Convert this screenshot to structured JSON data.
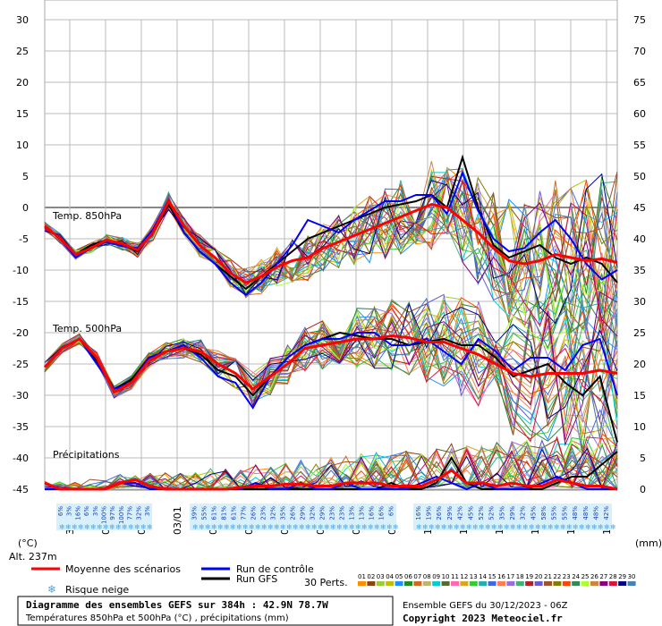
{
  "chart_data": {
    "type": "line",
    "left_axis": {
      "label": "(°C)",
      "ticks": [
        30,
        25,
        20,
        15,
        10,
        5,
        0,
        -5,
        -10,
        -15,
        -20,
        -25,
        -30,
        -35,
        -40,
        -45
      ],
      "range": [
        -45,
        30
      ]
    },
    "right_axis": {
      "label": "(mm)",
      "ticks": [
        75,
        70,
        65,
        60,
        55,
        50,
        45,
        40,
        35,
        30,
        25,
        20,
        15,
        10,
        5,
        0
      ],
      "range": [
        0,
        75
      ]
    },
    "x_dates": [
      "31/12",
      "01/01",
      "02/01",
      "03/01",
      "04/01",
      "05/01",
      "06/01",
      "07/01",
      "08/01",
      "09/01",
      "10/01",
      "11/01",
      "12/01",
      "13/01",
      "14/01",
      "15/01"
    ],
    "panel_labels": {
      "t850": "Temp. 850hPa",
      "t500": "Temp. 500hPa",
      "precip": "Précipitations"
    },
    "alt_label": "Alt. 237m",
    "snow_risk_percent": [
      [
        "6%",
        "3%",
        "16%",
        "6%",
        "3%",
        "100%",
        "97%",
        "100%",
        "77%",
        "32%",
        "3%"
      ],
      [
        "39%",
        "55%",
        "61%",
        "81%",
        "61%",
        "77%",
        "26%",
        "23%",
        "32%",
        "35%",
        "26%",
        "29%",
        "32%",
        "29%",
        "23%",
        "23%",
        "13%",
        "13%",
        "16%",
        "16%",
        "6%"
      ],
      [
        "16%",
        "19%",
        "26%",
        "29%",
        "42%",
        "45%",
        "52%",
        "52%",
        "35%",
        "29%",
        "32%",
        "45%",
        "58%",
        "55%",
        "55%",
        "48%",
        "48%",
        "48%",
        "42%"
      ]
    ],
    "series": [
      {
        "name": "Moyenne des scénarios",
        "color": "#ff0000",
        "t850": [
          -3,
          -5,
          -7.5,
          -6.5,
          -5.2,
          -5.8,
          -6.8,
          -4,
          1,
          -3,
          -6,
          -8,
          -10.5,
          -12,
          -11,
          -9.5,
          -8.5,
          -8,
          -6.5,
          -5.5,
          -4.5,
          -3.5,
          -2.5,
          -1.5,
          -0.5,
          0.5,
          0,
          -2,
          -4,
          -6.5,
          -8.5,
          -9,
          -8.5,
          -7.5,
          -8,
          -8.5,
          -8.2,
          -8.8
        ],
        "t500": [
          -25.5,
          -22.5,
          -21,
          -24,
          -29.5,
          -28,
          -24.5,
          -23,
          -22.5,
          -23,
          -25,
          -26.5,
          -29,
          -27,
          -25,
          -22.5,
          -22,
          -21.5,
          -21,
          -21,
          -20.5,
          -20.8,
          -21.5,
          -21.5,
          -22.5,
          -23.5,
          -25,
          -26.5,
          -27,
          -26.5,
          -26.5,
          -26.5,
          -26,
          -26.5
        ],
        "precip": [
          1,
          0,
          0,
          0,
          0,
          1,
          1.5,
          0.5,
          0,
          0,
          0,
          0,
          0,
          0.3,
          0.5,
          0.5,
          0.8,
          0.8,
          0.5,
          0.5,
          1,
          1,
          1,
          0.5,
          0.5,
          0.5,
          1.5,
          3,
          1,
          1,
          0.5,
          1,
          0.5,
          0.5,
          1.5,
          1,
          0.5,
          0.5,
          0
        ]
      },
      {
        "name": "Run de contrôle",
        "color": "#0000ff",
        "t850": [
          -3,
          -5,
          -8,
          -6.5,
          -5.5,
          -6.2,
          -6.5,
          -3.5,
          1.2,
          -4,
          -7,
          -9,
          -12,
          -14,
          -12,
          -9,
          -6,
          -2,
          -3,
          -4,
          -2,
          -0.5,
          1,
          1,
          2,
          2,
          -1,
          5.5,
          -0.5,
          -5,
          -7,
          -6.5,
          -4,
          -2,
          -5,
          -9,
          -11.5,
          -10
        ],
        "t500": [
          -25.5,
          -22.5,
          -21,
          -25,
          -29,
          -28,
          -24,
          -23,
          -22,
          -24,
          -27,
          -28,
          -32,
          -27,
          -24,
          -22,
          -21,
          -21,
          -20,
          -20,
          -22,
          -22,
          -21,
          -23,
          -25,
          -21,
          -23,
          -26,
          -24,
          -24,
          -26,
          -22,
          -21,
          -30
        ],
        "precip": [
          0,
          0,
          0,
          0,
          0,
          1,
          1,
          0,
          0,
          0,
          0,
          0,
          0,
          0,
          1,
          0,
          0,
          1,
          0,
          0,
          1,
          0,
          0,
          0,
          0,
          1,
          2,
          1,
          0,
          1,
          0,
          0,
          0,
          1,
          2,
          1,
          0,
          0,
          0
        ]
      },
      {
        "name": "Run GFS",
        "color": "#000000",
        "t850": [
          -3,
          -5,
          -7.5,
          -6,
          -5.2,
          -6,
          -7,
          -4,
          0.5,
          -4,
          -7,
          -9,
          -11,
          -13,
          -11,
          -9,
          -7,
          -5,
          -4,
          -3,
          -2,
          -1,
          0,
          0.5,
          1,
          2,
          0,
          8,
          0,
          -6,
          -8,
          -7,
          -6,
          -8,
          -9,
          -8,
          -9,
          -12
        ],
        "t500": [
          -25.5,
          -22.5,
          -21,
          -24.5,
          -29,
          -27.5,
          -24,
          -23,
          -22.5,
          -23.5,
          -26,
          -27,
          -30,
          -27,
          -24,
          -22,
          -21,
          -20,
          -20.5,
          -21,
          -21,
          -22,
          -21.5,
          -21,
          -22,
          -22,
          -24,
          -27,
          -26,
          -25,
          -28,
          -30,
          -27,
          -37.5
        ],
        "precip": [
          0,
          0,
          0,
          0,
          0,
          1,
          1,
          0,
          0,
          0,
          0,
          0,
          0,
          0,
          0,
          0,
          0,
          0,
          0,
          0,
          0,
          0,
          0,
          1,
          0,
          0,
          1,
          5,
          1,
          0,
          0,
          0,
          0,
          0,
          1,
          2,
          2,
          4,
          6
        ]
      }
    ],
    "ensemble_count_label": "30 Perts.",
    "members": [
      {
        "id": "01",
        "color": "#ff8c00"
      },
      {
        "id": "02",
        "color": "#8b4513"
      },
      {
        "id": "03",
        "color": "#9acd32"
      },
      {
        "id": "04",
        "color": "#c0c000"
      },
      {
        "id": "05",
        "color": "#1e90ff"
      },
      {
        "id": "06",
        "color": "#228b22"
      },
      {
        "id": "07",
        "color": "#d2691e"
      },
      {
        "id": "08",
        "color": "#bdb76b"
      },
      {
        "id": "09",
        "color": "#00ced1"
      },
      {
        "id": "10",
        "color": "#556b2f"
      },
      {
        "id": "11",
        "color": "#ff69b4"
      },
      {
        "id": "12",
        "color": "#daa520"
      },
      {
        "id": "13",
        "color": "#32cd32"
      },
      {
        "id": "14",
        "color": "#20b2aa"
      },
      {
        "id": "15",
        "color": "#4169e1"
      },
      {
        "id": "16",
        "color": "#ff7f50"
      },
      {
        "id": "17",
        "color": "#9370db"
      },
      {
        "id": "18",
        "color": "#3cb371"
      },
      {
        "id": "19",
        "color": "#b22222"
      },
      {
        "id": "20",
        "color": "#6a5acd"
      },
      {
        "id": "21",
        "color": "#a0522d"
      },
      {
        "id": "22",
        "color": "#808000"
      },
      {
        "id": "23",
        "color": "#ff4500"
      },
      {
        "id": "24",
        "color": "#2e8b57"
      },
      {
        "id": "25",
        "color": "#adff2f"
      },
      {
        "id": "26",
        "color": "#cd853f"
      },
      {
        "id": "27",
        "color": "#800080"
      },
      {
        "id": "28",
        "color": "#dc143c"
      },
      {
        "id": "29",
        "color": "#00008b"
      },
      {
        "id": "30",
        "color": "#4682b4"
      }
    ]
  },
  "legend": {
    "mean": "Moyenne des scénarios",
    "control": "Run de contrôle",
    "gfs": "Run GFS",
    "snow": "Risque neige"
  },
  "footer": {
    "title": "Diagramme des ensembles GEFS sur 384h : 42.9N 78.7W",
    "subtitle": "Températures 850hPa et 500hPa (°C) , précipitations (mm)",
    "run": "Ensemble GEFS du 30/12/2023 - 06Z",
    "copyright": "Copyright 2023 Meteociel.fr"
  }
}
